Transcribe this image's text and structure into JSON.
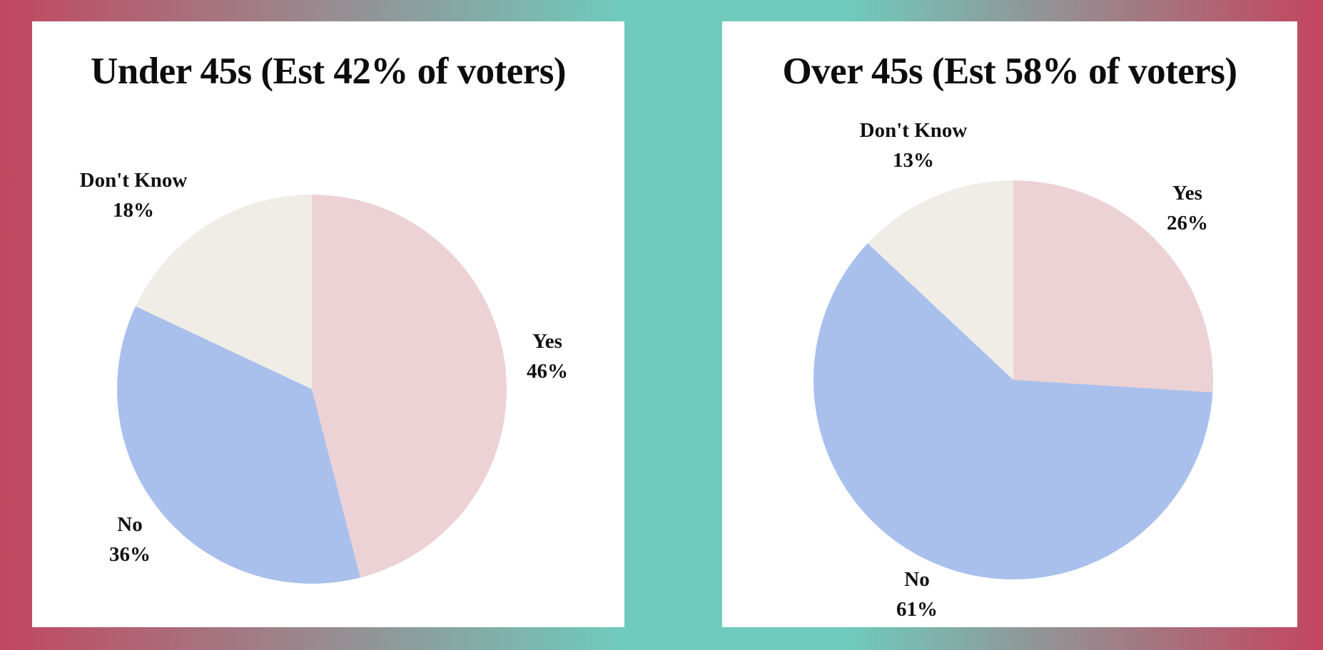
{
  "page": {
    "background": {
      "edge_color": "#c24760",
      "center_color": "#6fcbbd"
    },
    "panel_color": "#ffffff",
    "text_color": "#111111"
  },
  "chart_data": [
    {
      "type": "pie",
      "title": "Under 45s (Est 42% of voters)",
      "start_angle_deg": 0,
      "direction": "clockwise",
      "slices": [
        {
          "label": "Yes",
          "value": 46,
          "pct_label": "46%",
          "color": "#edd2d5"
        },
        {
          "label": "No",
          "value": 36,
          "pct_label": "36%",
          "color": "#a9c0ed"
        },
        {
          "label": "Don't Know",
          "value": 18,
          "pct_label": "18%",
          "color": "#f0ece6"
        }
      ]
    },
    {
      "type": "pie",
      "title": "Over 45s (Est 58% of voters)",
      "start_angle_deg": 0,
      "direction": "clockwise",
      "slices": [
        {
          "label": "Yes",
          "value": 26,
          "pct_label": "26%",
          "color": "#edd2d5"
        },
        {
          "label": "No",
          "value": 61,
          "pct_label": "61%",
          "color": "#a9c0ed"
        },
        {
          "label": "Don't Know",
          "value": 13,
          "pct_label": "13%",
          "color": "#f0ece6"
        }
      ]
    }
  ]
}
